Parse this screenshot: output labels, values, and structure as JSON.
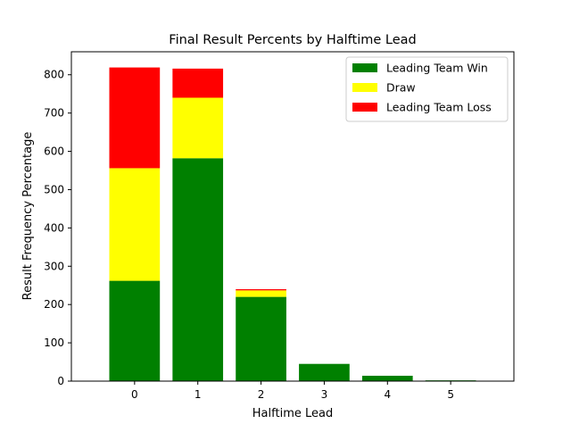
{
  "chart_data": {
    "type": "bar",
    "stacked": true,
    "title": "Final Result Percents by Halftime Lead",
    "xlabel": "Halftime Lead",
    "ylabel": "Result Frequency Percentage",
    "categories": [
      "0",
      "1",
      "2",
      "3",
      "4",
      "5"
    ],
    "ylim": [
      0,
      860
    ],
    "xlim": [
      -1,
      6
    ],
    "yticks": [
      0,
      100,
      200,
      300,
      400,
      500,
      600,
      700,
      800
    ],
    "grid": false,
    "legend_position": "top-right",
    "series": [
      {
        "name": "Leading Team Win",
        "color": "#008000",
        "values": [
          262,
          582,
          220,
          45,
          14,
          2
        ]
      },
      {
        "name": "Draw",
        "color": "#ffff00",
        "values": [
          294,
          158,
          17,
          0,
          0,
          0
        ]
      },
      {
        "name": "Leading Team Loss",
        "color": "#ff0000",
        "values": [
          263,
          76,
          3,
          0,
          0,
          0
        ]
      }
    ]
  }
}
